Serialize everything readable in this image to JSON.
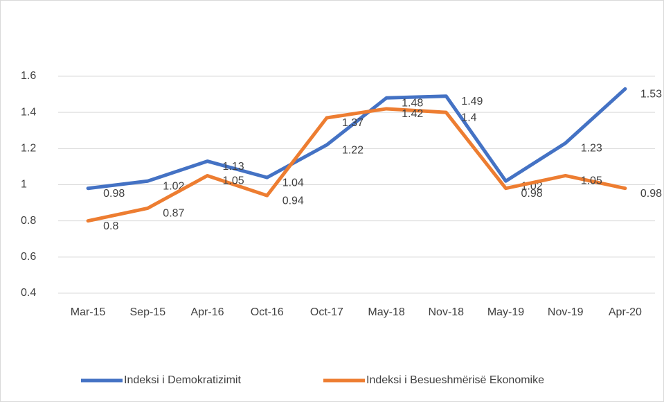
{
  "chart_data": {
    "type": "line",
    "categories": [
      "Mar-15",
      "Sep-15",
      "Apr-16",
      "Oct-16",
      "Oct-17",
      "May-18",
      "Nov-18",
      "May-19",
      "Nov-19",
      "Apr-20"
    ],
    "series": [
      {
        "name": "Indeksi i Demokratizimit",
        "color": "#4472c4",
        "values": [
          0.98,
          1.02,
          1.13,
          1.04,
          1.22,
          1.48,
          1.49,
          1.02,
          1.23,
          1.53
        ]
      },
      {
        "name": "Indeksi i Besueshmërisë Ekonomike",
        "color": "#ed7d31",
        "values": [
          0.8,
          0.87,
          1.05,
          0.94,
          1.37,
          1.42,
          1.4,
          0.98,
          1.05,
          0.98
        ]
      }
    ],
    "ylim": [
      0.4,
      1.6
    ],
    "yticks": [
      0.4,
      0.6,
      0.8,
      1,
      1.2,
      1.4,
      1.6
    ],
    "grid": true,
    "legend": "bottom",
    "data_labels": true
  }
}
